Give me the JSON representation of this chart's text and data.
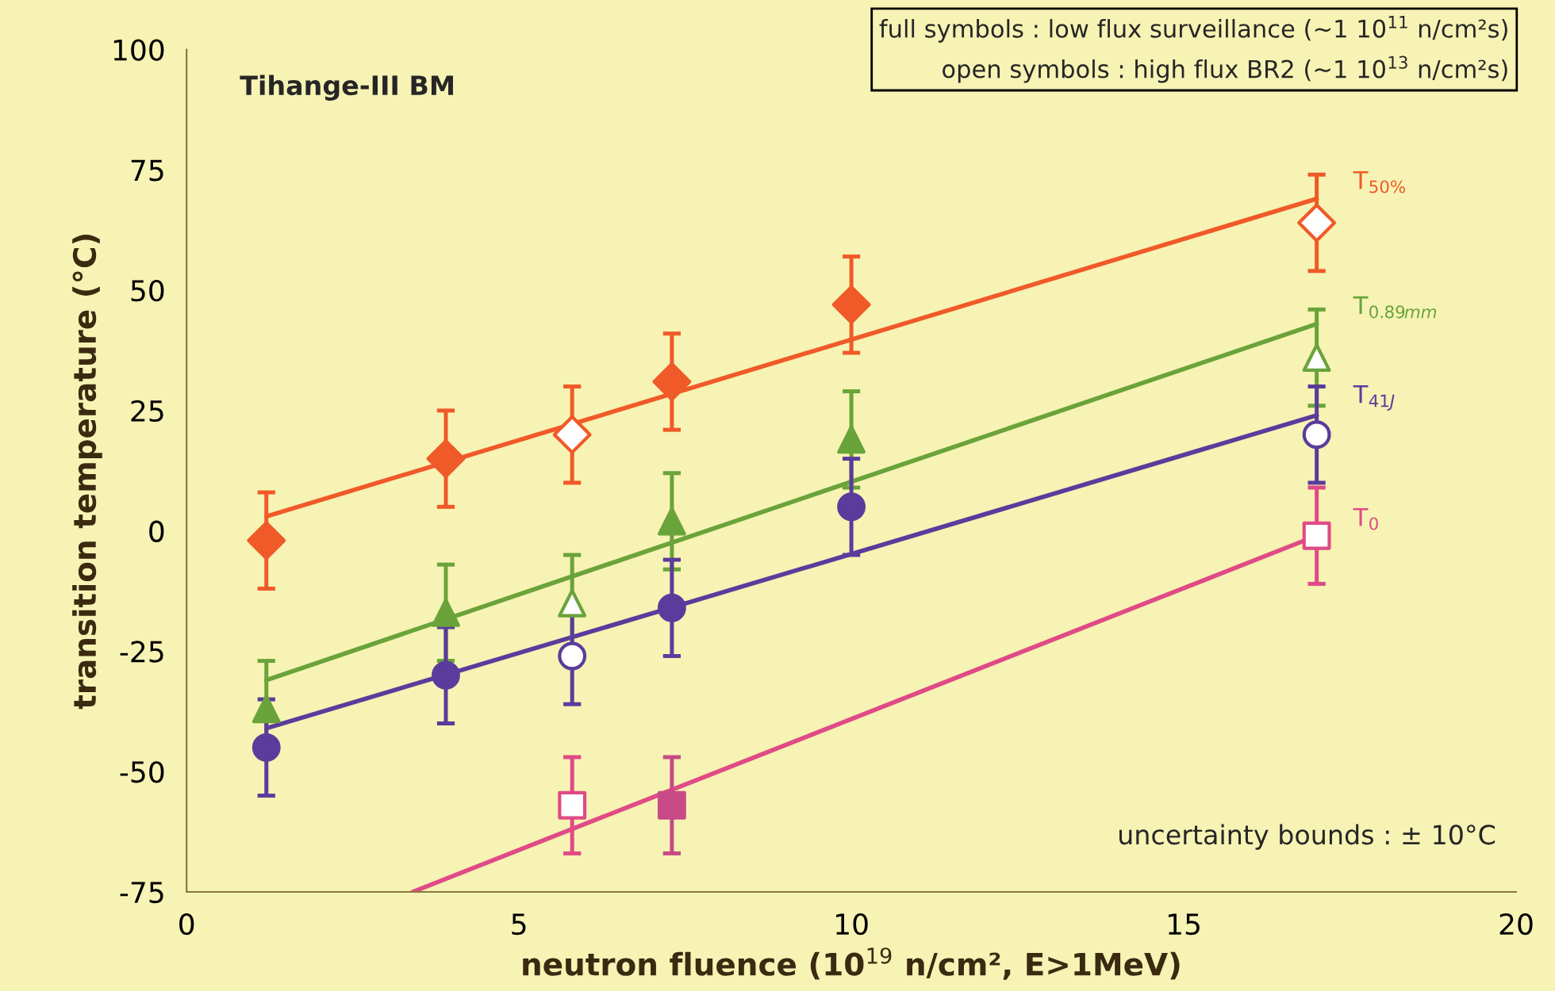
{
  "chart_data": {
    "type": "scatter",
    "title": "Tihange-III BM",
    "xlabel": "neutron fluence (10$^{19}$ n/cm², E>1MeV)",
    "ylabel": "transition temperature (°C)",
    "xlim": [
      0,
      20
    ],
    "xticks": [
      0,
      5,
      10,
      15,
      20
    ],
    "ylim": [
      -75,
      100
    ],
    "yticks": [
      -75,
      -50,
      -25,
      0,
      25,
      50,
      75,
      100
    ],
    "grid": false,
    "legend": false,
    "annotations": [
      "full symbols : low flux surveillance (~1 10$^{11}$ n/cm²s)",
      "open symbols : high flux BR2 (~1 10$^{13}$ n/cm²s)",
      "uncertainty bounds : ± 10°C"
    ],
    "series": [
      {
        "type": "line",
        "name": "T$_{50%}$",
        "color": "#f05a28",
        "marker": "none",
        "x": [
          1.2,
          17
        ],
        "values": [
          3,
          69
        ]
      },
      {
        "color": "#f05a28",
        "marker": "diamond",
        "x": [
          1.2,
          3.9,
          7.3,
          10
        ],
        "values": [
          -2,
          15,
          31,
          47
        ],
        "errors": [
          10,
          10,
          10,
          10
        ]
      },
      {
        "color": "#f05a28",
        "colors": [
          "#ffffff",
          "#ffffff"
        ],
        "marker": "diamond",
        "x": [
          5.8,
          17
        ],
        "values": [
          20,
          64
        ],
        "errors": [
          10,
          10
        ]
      },
      {
        "type": "line",
        "name": "T$_{0.89mm}$",
        "color": "#6aa33a",
        "marker": "none",
        "x": [
          1.2,
          17
        ],
        "values": [
          -31,
          43
        ]
      },
      {
        "color": "#6aa33a",
        "marker": "triangle",
        "x": [
          1.2,
          3.9,
          7.3,
          10
        ],
        "values": [
          -37,
          -17,
          2,
          19
        ],
        "errors": [
          10,
          10,
          10,
          10
        ]
      },
      {
        "color": "#6aa33a",
        "colors": [
          "#ffffff",
          "#ffffff"
        ],
        "marker": "triangle",
        "x": [
          5.8,
          17
        ],
        "values": [
          -15,
          36
        ],
        "errors": [
          10,
          10
        ]
      },
      {
        "type": "line",
        "name": "T$_{41J}$",
        "color": "#5a3c9c",
        "marker": "none",
        "x": [
          1.2,
          17
        ],
        "values": [
          -41,
          24
        ]
      },
      {
        "color": "#5a3c9c",
        "marker": "circle",
        "x": [
          1.2,
          3.9,
          7.3,
          10
        ],
        "values": [
          -45,
          -30,
          -16,
          5
        ],
        "errors": [
          10,
          10,
          10,
          10
        ]
      },
      {
        "color": "#5a3c9c",
        "colors": [
          "#ffffff",
          "#ffffff"
        ],
        "marker": "circle",
        "x": [
          5.8,
          17
        ],
        "values": [
          -26,
          20
        ],
        "errors": [
          10,
          10
        ]
      },
      {
        "type": "line",
        "name": "T$_{0}$",
        "color": "#e04a86",
        "marker": "none",
        "x": [
          3.4,
          17
        ],
        "values": [
          -75,
          -1
        ]
      },
      {
        "color": "#c84a86",
        "marker": "square",
        "x": [
          7.3
        ],
        "values": [
          -57
        ],
        "errors": [
          10
        ]
      },
      {
        "color": "#e04a86",
        "colors": [
          "#ffffff",
          "#ffffff"
        ],
        "marker": "square",
        "x": [
          5.8,
          17
        ],
        "values": [
          -57,
          -1
        ],
        "errors": [
          10,
          10
        ]
      }
    ]
  }
}
